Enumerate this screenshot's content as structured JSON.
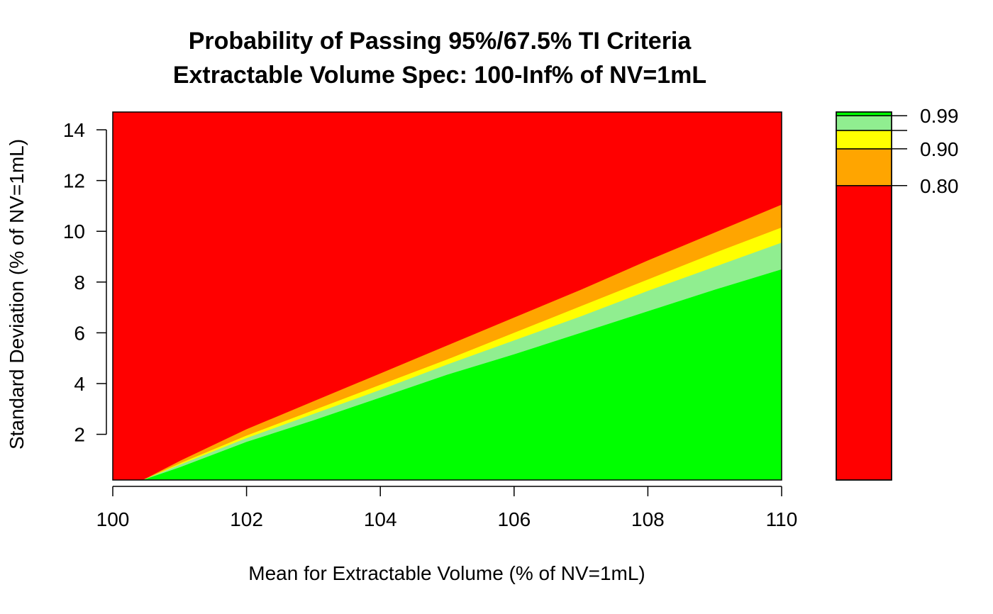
{
  "chart_data": {
    "type": "heatmap",
    "title": "Probability of Passing 95%/67.5% TI Criteria",
    "subtitle": "Extractable Volume Spec: 100-Inf% of NV=1mL",
    "xlabel": "Mean for Extractable Volume (% of NV=1mL)",
    "ylabel": "Standard Deviation (% of NV=1mL)",
    "xlim": [
      100,
      110
    ],
    "ylim": [
      0.2,
      14.7
    ],
    "x_ticks": [
      "100",
      "102",
      "104",
      "106",
      "108",
      "110"
    ],
    "y_ticks": [
      "2",
      "4",
      "6",
      "8",
      "10",
      "12",
      "14"
    ],
    "levels": [
      {
        "range": "<0.80",
        "color": "#ff0000"
      },
      {
        "range": "0.80-0.90",
        "color": "#ffa500"
      },
      {
        "range": "0.90-0.95",
        "color": "#ffff00"
      },
      {
        "range": "0.95-0.99",
        "color": "#90ee90"
      },
      {
        "range": ">=0.99",
        "color": "#00ff00"
      }
    ],
    "contours": [
      {
        "level": 0.8,
        "x": [
          100.45,
          101,
          102,
          103,
          104,
          105,
          106,
          107,
          108,
          109,
          110
        ],
        "y": [
          0.2,
          0.95,
          2.2,
          3.3,
          4.4,
          5.5,
          6.6,
          7.7,
          8.85,
          9.95,
          11.05
        ]
      },
      {
        "level": 0.9,
        "x": [
          100.45,
          101,
          102,
          103,
          104,
          105,
          106,
          107,
          108,
          109,
          110
        ],
        "y": [
          0.2,
          0.85,
          1.95,
          2.95,
          3.95,
          4.95,
          6.0,
          7.05,
          8.1,
          9.15,
          10.15
        ]
      },
      {
        "level": 0.95,
        "x": [
          100.45,
          101,
          102,
          103,
          104,
          105,
          106,
          107,
          108,
          109,
          110
        ],
        "y": [
          0.2,
          0.8,
          1.85,
          2.8,
          3.75,
          4.75,
          5.7,
          6.65,
          7.65,
          8.6,
          9.55
        ]
      },
      {
        "level": 0.99,
        "x": [
          100.45,
          101,
          102,
          103,
          104,
          105,
          106,
          107,
          108,
          109,
          110
        ],
        "y": [
          0.2,
          0.7,
          1.7,
          2.55,
          3.45,
          4.35,
          5.15,
          6.0,
          6.85,
          7.7,
          8.5
        ]
      }
    ],
    "legend": {
      "placement": "right",
      "labels": [
        "0.99",
        "0.90",
        "0.80"
      ]
    }
  }
}
